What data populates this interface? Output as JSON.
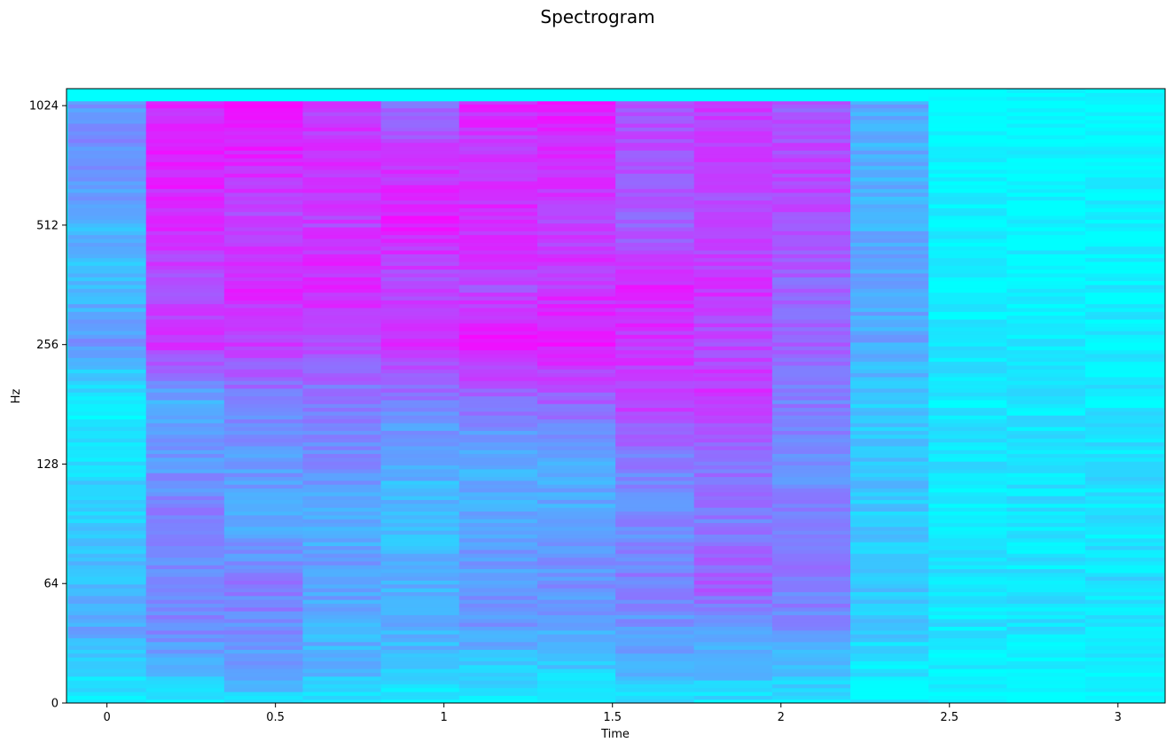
{
  "chart_data": {
    "type": "heatmap",
    "title": "Spectrogram",
    "xlabel": "Time",
    "ylabel": "Hz",
    "xlim": [
      -0.12,
      3.14
    ],
    "x_ticks": [
      {
        "value": 0,
        "label": "0"
      },
      {
        "value": 0.5,
        "label": "0.5"
      },
      {
        "value": 1,
        "label": "1"
      },
      {
        "value": 1.5,
        "label": "1.5"
      },
      {
        "value": 2,
        "label": "2"
      },
      {
        "value": 2.5,
        "label": "2.5"
      },
      {
        "value": 3,
        "label": "3"
      }
    ],
    "y_scale": "symlog (base 2)",
    "y_ticks": [
      {
        "value": 0,
        "label": "0"
      },
      {
        "value": 64,
        "label": "64"
      },
      {
        "value": 128,
        "label": "128"
      },
      {
        "value": 256,
        "label": "256"
      },
      {
        "value": 512,
        "label": "512"
      },
      {
        "value": 1024,
        "label": "1024"
      }
    ],
    "colormap": "cool",
    "colormap_colors": [
      "#00ffff",
      "#ff00ff"
    ],
    "frame_width_s": 0.232,
    "frame_centers_s": [
      0.0,
      0.232,
      0.464,
      0.697,
      0.929,
      1.161,
      1.393,
      1.625,
      1.858,
      2.09,
      2.322,
      2.554,
      2.786,
      3.019
    ],
    "frame_top_hz": [
      1050,
      1050,
      1050,
      1050,
      1050,
      1050,
      1050,
      1050,
      1050,
      1050,
      1050,
      1200,
      1200,
      1200
    ],
    "frame_intensity_anchors_hz": [
      0,
      20,
      40,
      64,
      90,
      128,
      180,
      256,
      360,
      512,
      720,
      1024
    ],
    "frame_intensity": [
      [
        0.05,
        0.15,
        0.35,
        0.25,
        0.2,
        0.15,
        0.05,
        0.4,
        0.25,
        0.3,
        0.45,
        0.4
      ],
      [
        0.1,
        0.3,
        0.45,
        0.45,
        0.5,
        0.4,
        0.3,
        0.8,
        0.7,
        0.85,
        0.85,
        0.85
      ],
      [
        0.15,
        0.35,
        0.45,
        0.5,
        0.35,
        0.4,
        0.5,
        0.75,
        0.85,
        0.7,
        0.85,
        0.9
      ],
      [
        0.1,
        0.3,
        0.3,
        0.4,
        0.3,
        0.45,
        0.5,
        0.7,
        0.85,
        0.75,
        0.8,
        0.75
      ],
      [
        0.05,
        0.25,
        0.3,
        0.3,
        0.25,
        0.3,
        0.5,
        0.85,
        0.7,
        0.9,
        0.8,
        0.6
      ],
      [
        0.1,
        0.2,
        0.4,
        0.4,
        0.35,
        0.3,
        0.55,
        0.95,
        0.7,
        0.85,
        0.75,
        0.85
      ],
      [
        0.05,
        0.2,
        0.35,
        0.45,
        0.35,
        0.3,
        0.6,
        0.9,
        0.8,
        0.75,
        0.8,
        0.9
      ],
      [
        0.1,
        0.3,
        0.4,
        0.5,
        0.45,
        0.5,
        0.75,
        0.8,
        0.85,
        0.6,
        0.7,
        0.7
      ],
      [
        0.1,
        0.3,
        0.4,
        0.65,
        0.5,
        0.55,
        0.8,
        0.7,
        0.8,
        0.7,
        0.75,
        0.75
      ],
      [
        0.1,
        0.25,
        0.45,
        0.5,
        0.5,
        0.45,
        0.5,
        0.6,
        0.6,
        0.7,
        0.75,
        0.65
      ],
      [
        0.05,
        0.1,
        0.2,
        0.2,
        0.2,
        0.25,
        0.2,
        0.35,
        0.35,
        0.3,
        0.3,
        0.35
      ],
      [
        0.0,
        0.05,
        0.1,
        0.12,
        0.1,
        0.1,
        0.08,
        0.1,
        0.05,
        0.05,
        0.02,
        0.0
      ],
      [
        0.0,
        0.05,
        0.1,
        0.1,
        0.1,
        0.12,
        0.1,
        0.08,
        0.06,
        0.05,
        0.02,
        0.0
      ],
      [
        0.0,
        0.02,
        0.1,
        0.12,
        0.1,
        0.12,
        0.08,
        0.06,
        0.05,
        0.04,
        0.02,
        0.0
      ]
    ]
  }
}
